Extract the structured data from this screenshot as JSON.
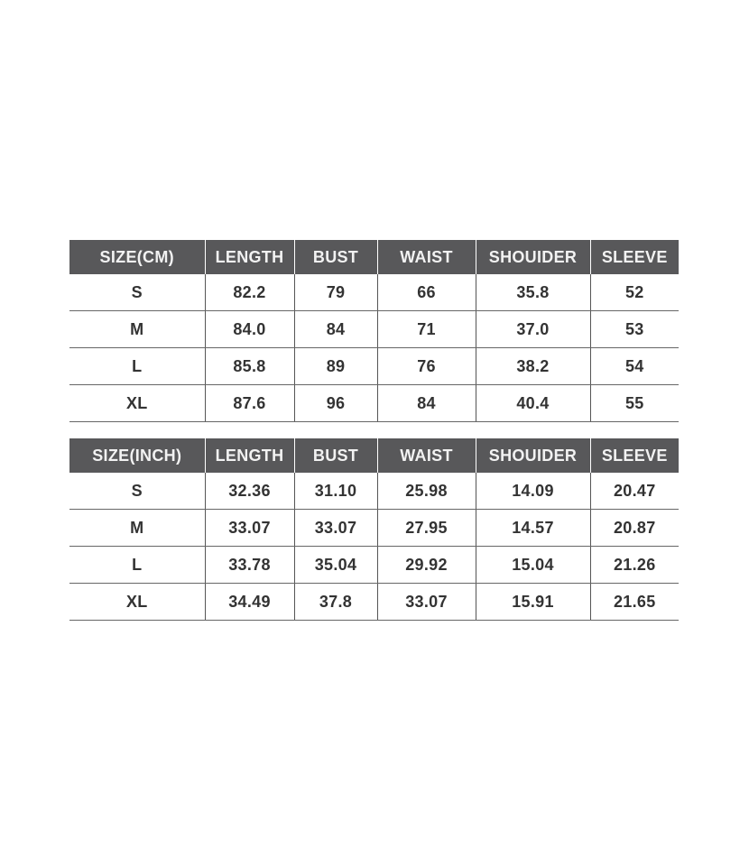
{
  "tables": [
    {
      "headers": [
        "SIZE(CM)",
        "LENGTH",
        "BUST",
        "WAIST",
        "SHOUIDER",
        "SLEEVE"
      ],
      "rows": [
        [
          "S",
          "82.2",
          "79",
          "66",
          "35.8",
          "52"
        ],
        [
          "M",
          "84.0",
          "84",
          "71",
          "37.0",
          "53"
        ],
        [
          "L",
          "85.8",
          "89",
          "76",
          "38.2",
          "54"
        ],
        [
          "XL",
          "87.6",
          "96",
          "84",
          "40.4",
          "55"
        ]
      ]
    },
    {
      "headers": [
        "SIZE(INCH)",
        "LENGTH",
        "BUST",
        "WAIST",
        "SHOUIDER",
        "SLEEVE"
      ],
      "rows": [
        [
          "S",
          "32.36",
          "31.10",
          "25.98",
          "14.09",
          "20.47"
        ],
        [
          "M",
          "33.07",
          "33.07",
          "27.95",
          "14.57",
          "20.87"
        ],
        [
          "L",
          "33.78",
          "35.04",
          "29.92",
          "15.04",
          "21.26"
        ],
        [
          "XL",
          "34.49",
          "37.8",
          "33.07",
          "15.91",
          "21.65"
        ]
      ]
    }
  ],
  "colors": {
    "header_bg": "#58585a",
    "header_text": "#f2f2f2",
    "cell_text": "#333333"
  }
}
